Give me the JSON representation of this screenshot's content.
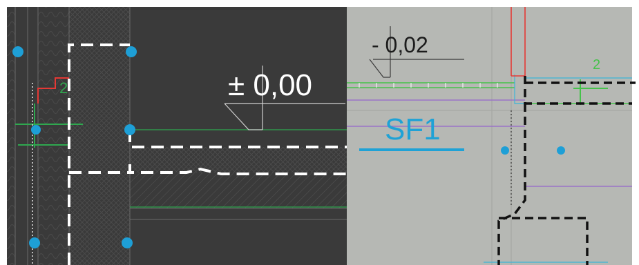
{
  "left_panel": {
    "level_label": "± 0,00",
    "dimension_mark": "2",
    "colors": {
      "background": "#3a3a3a",
      "dashed_outline": "#ffffff",
      "grid_point": "#1e9fd6",
      "axis_green": "#2fa84f",
      "annotation_red": "#e53935"
    }
  },
  "right_panel": {
    "level_label": "- 0,02",
    "zone_label": "SF1",
    "dimension_mark": "2",
    "colors": {
      "background": "#b6b8b4",
      "zone_label": "#1fa2d6",
      "dashed_outline": "#111111",
      "axis_green": "#45c24a",
      "purple_line": "#9a72c8",
      "cyan_line": "#3bb5d8"
    }
  }
}
